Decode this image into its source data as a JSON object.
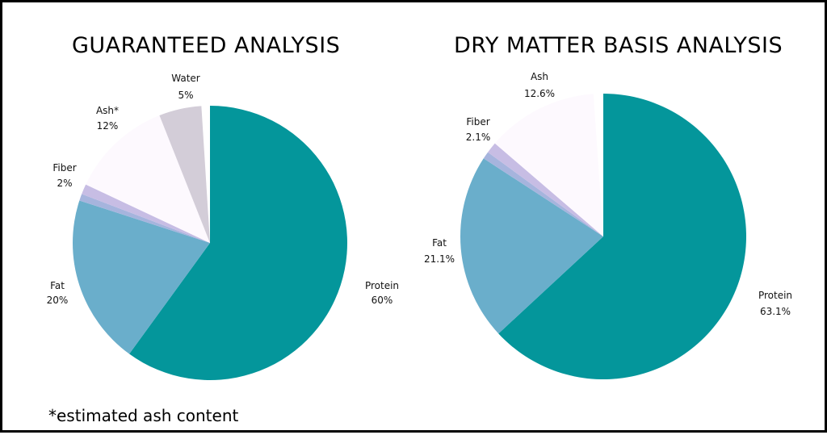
{
  "footnote": "*estimated ash content",
  "chart_data": [
    {
      "type": "pie",
      "title": "GUARANTEED ANALYSIS",
      "slices": [
        {
          "name": "Protein",
          "label": "Protein",
          "value": 60,
          "value_label": "60%",
          "color": "#04969b"
        },
        {
          "name": "Fat",
          "label": "Fat",
          "value": 20,
          "value_label": "20%",
          "color": "#6aaecb"
        },
        {
          "name": "Fiber",
          "label": "Fiber",
          "value": 2,
          "value_label": "2%",
          "color": "#c7bde4"
        },
        {
          "name": "Ash",
          "label": "Ash*",
          "value": 12,
          "value_label": "12%",
          "color": "#fdf9fe"
        },
        {
          "name": "Water",
          "label": "Water",
          "value": 5,
          "value_label": "5%",
          "color": "#d3cdd8"
        }
      ]
    },
    {
      "type": "pie",
      "title": "DRY MATTER BASIS ANALYSIS",
      "slices": [
        {
          "name": "Protein",
          "label": "Protein",
          "value": 63.1,
          "value_label": "63.1%",
          "color": "#04969b"
        },
        {
          "name": "Fat",
          "label": "Fat",
          "value": 21.1,
          "value_label": "21.1%",
          "color": "#6aaecb"
        },
        {
          "name": "Fiber",
          "label": "Fiber",
          "value": 2.1,
          "value_label": "2.1%",
          "color": "#c7bde4"
        },
        {
          "name": "Ash",
          "label": "Ash",
          "value": 12.6,
          "value_label": "12.6%",
          "color": "#fdf9fe"
        }
      ]
    }
  ]
}
